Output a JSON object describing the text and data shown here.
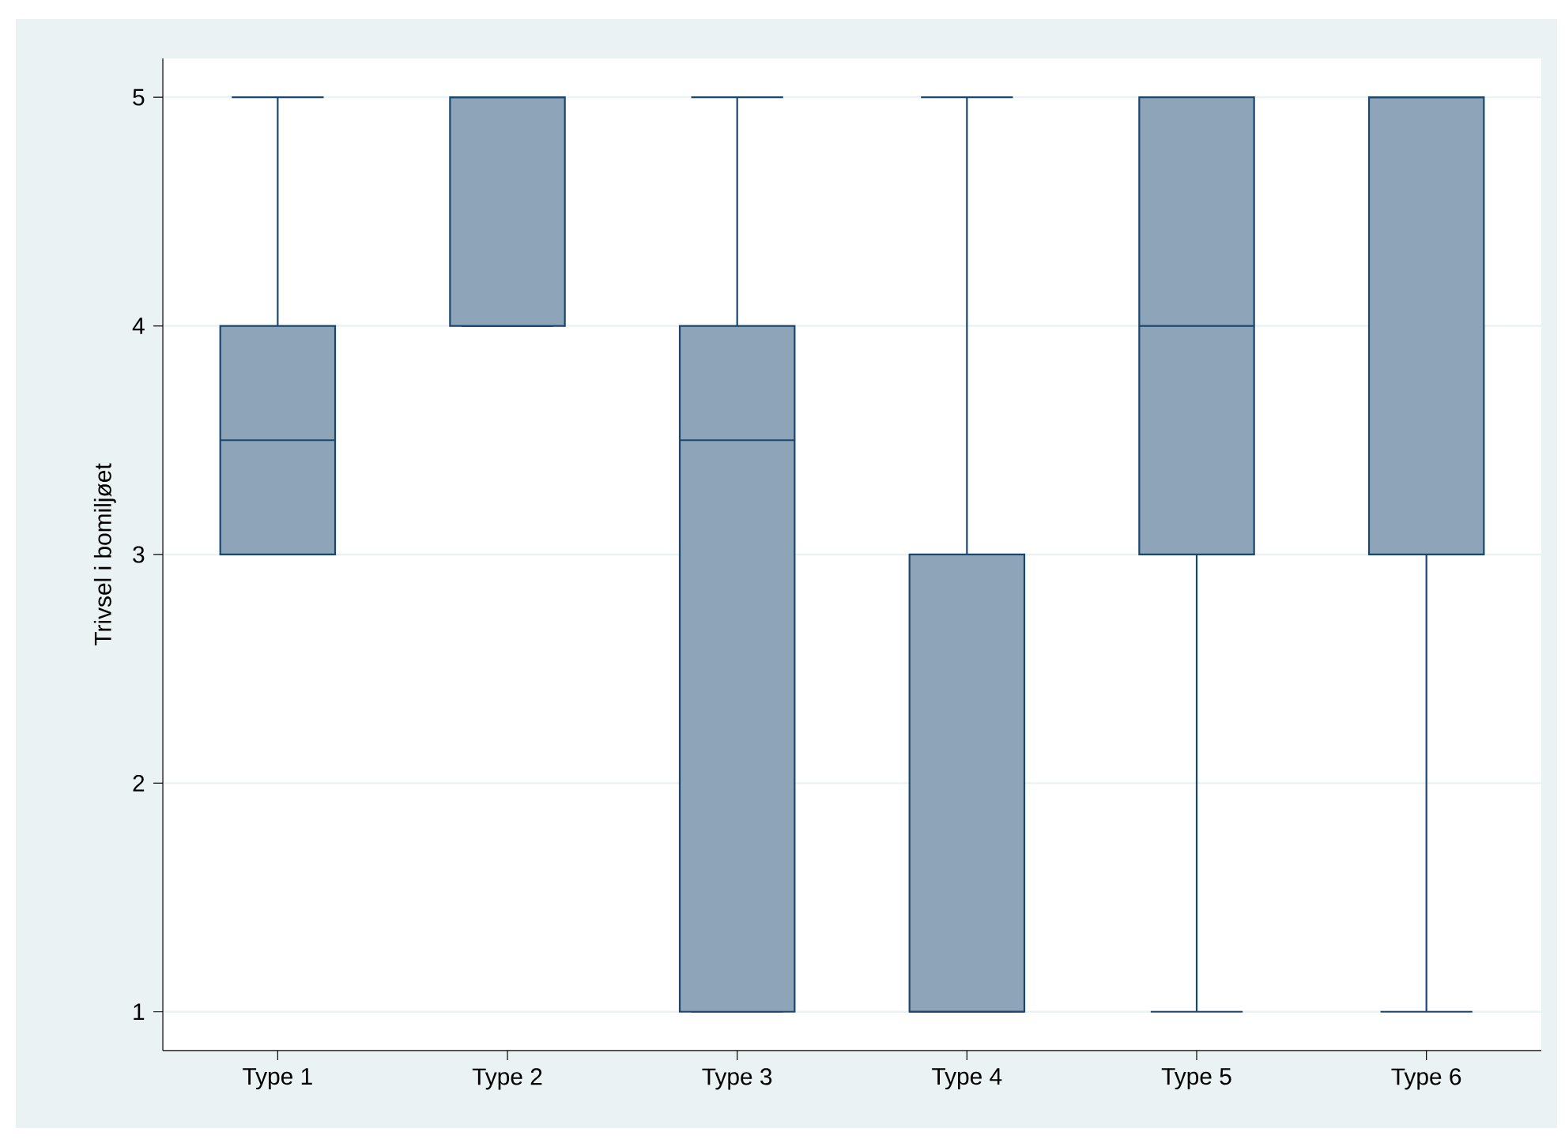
{
  "chart_data": {
    "type": "box",
    "ylabel": "Trivsel i bomiljøet",
    "categories": [
      "Type 1",
      "Type 2",
      "Type 3",
      "Type 4",
      "Type 5",
      "Type 6"
    ],
    "color": "#8da4b9",
    "boxes": [
      {
        "low": 3,
        "q1": 3,
        "median": 3.5,
        "q3": 4,
        "high": 5
      },
      {
        "low": 4,
        "q1": 4,
        "median": 5,
        "q3": 5,
        "high": 5
      },
      {
        "low": 1,
        "q1": 1,
        "median": 3.5,
        "q3": 4,
        "high": 5
      },
      {
        "low": 1,
        "q1": 1,
        "median": 1,
        "q3": 3,
        "high": 5
      },
      {
        "low": 1,
        "q1": 3,
        "median": 4,
        "q3": 5,
        "high": 5
      },
      {
        "low": 1,
        "q1": 3,
        "median": 5,
        "q3": 5,
        "high": 5
      }
    ],
    "ylim": [
      0.83,
      5.17
    ],
    "yticks": [
      1,
      2,
      3,
      4,
      5
    ],
    "grid": "y"
  }
}
